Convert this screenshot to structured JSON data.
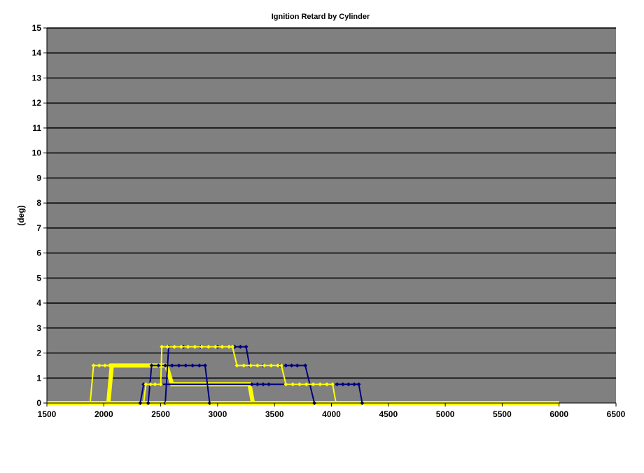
{
  "chart_data": {
    "type": "line",
    "title": "Ignition Retard by Cylinder",
    "xlabel": "",
    "ylabel": "(deg)",
    "xlim": [
      1500,
      6500
    ],
    "ylim": [
      0,
      15
    ],
    "xticks": [
      1500,
      2000,
      2500,
      3000,
      3500,
      4000,
      4500,
      5000,
      5500,
      6000,
      6500
    ],
    "yticks": [
      0,
      1,
      2,
      3,
      4,
      5,
      6,
      7,
      8,
      9,
      10,
      11,
      12,
      13,
      14,
      15
    ],
    "grid": "horizontal",
    "legend": "none",
    "plot_background": "#808080",
    "series": [
      {
        "color": "#ffff00",
        "markers": false,
        "width": 6,
        "points": [
          [
            1500,
            0
          ],
          [
            6000,
            0
          ]
        ]
      },
      {
        "color": "#ffff00",
        "markers": false,
        "width": 6,
        "points": [
          [
            2040,
            0
          ],
          [
            2070,
            1.5
          ],
          [
            2550,
            1.5
          ],
          [
            2600,
            0.75
          ],
          [
            3280,
            0.75
          ],
          [
            3310,
            0
          ]
        ]
      },
      {
        "color": "#ffff00",
        "markers": true,
        "width": 2,
        "points": [
          [
            1880,
            0
          ],
          [
            1910,
            1.5
          ],
          [
            1960,
            1.5
          ],
          [
            2010,
            1.5
          ],
          [
            2050,
            1.5
          ]
        ]
      },
      {
        "color": "#000080",
        "markers": true,
        "width": 2,
        "points": [
          [
            2390,
            0
          ],
          [
            2420,
            1.5
          ],
          [
            2480,
            1.5
          ],
          [
            2540,
            1.5
          ],
          [
            2600,
            1.5
          ],
          [
            2660,
            1.5
          ],
          [
            2720,
            1.5
          ],
          [
            2780,
            1.5
          ],
          [
            2840,
            1.5
          ],
          [
            2890,
            1.5
          ],
          [
            2930,
            0
          ]
        ]
      },
      {
        "color": "#000080",
        "markers": true,
        "width": 2,
        "points": [
          [
            2540,
            0
          ],
          [
            2570,
            2.25
          ],
          [
            2700,
            2.25
          ],
          [
            2850,
            2.25
          ],
          [
            3000,
            2.25
          ],
          [
            3150,
            2.25
          ],
          [
            3200,
            2.25
          ],
          [
            3250,
            2.25
          ],
          [
            3280,
            1.5
          ],
          [
            3400,
            1.5
          ],
          [
            3550,
            1.5
          ],
          [
            3600,
            1.5
          ],
          [
            3650,
            1.5
          ],
          [
            3700,
            1.5
          ],
          [
            3770,
            1.5
          ],
          [
            3850,
            0
          ]
        ]
      },
      {
        "color": "#000080",
        "markers": true,
        "width": 2,
        "points": [
          [
            2320,
            0
          ],
          [
            2350,
            0.75
          ],
          [
            3300,
            0.75
          ],
          [
            3350,
            0.75
          ],
          [
            3400,
            0.75
          ],
          [
            3450,
            0.75
          ],
          [
            4050,
            0.75
          ],
          [
            4100,
            0.75
          ],
          [
            4150,
            0.75
          ],
          [
            4200,
            0.75
          ],
          [
            4240,
            0.75
          ],
          [
            4270,
            0
          ]
        ]
      },
      {
        "color": "#ffff00",
        "markers": true,
        "width": 2,
        "points": [
          [
            2350,
            0
          ],
          [
            2370,
            0.75
          ],
          [
            2410,
            0.75
          ],
          [
            2450,
            0.75
          ],
          [
            2500,
            0.75
          ],
          [
            2510,
            2.25
          ],
          [
            2560,
            2.25
          ],
          [
            2620,
            2.25
          ],
          [
            2680,
            2.25
          ],
          [
            2740,
            2.25
          ],
          [
            2800,
            2.25
          ],
          [
            2860,
            2.25
          ],
          [
            2920,
            2.25
          ],
          [
            2980,
            2.25
          ],
          [
            3040,
            2.25
          ],
          [
            3100,
            2.25
          ],
          [
            3130,
            2.25
          ],
          [
            3170,
            1.5
          ],
          [
            3230,
            1.5
          ],
          [
            3290,
            1.5
          ],
          [
            3350,
            1.5
          ],
          [
            3410,
            1.5
          ],
          [
            3470,
            1.5
          ],
          [
            3530,
            1.5
          ],
          [
            3560,
            1.5
          ],
          [
            3600,
            0.75
          ],
          [
            3660,
            0.75
          ],
          [
            3720,
            0.75
          ],
          [
            3780,
            0.75
          ],
          [
            3840,
            0.75
          ],
          [
            3900,
            0.75
          ],
          [
            3960,
            0.75
          ],
          [
            4010,
            0.75
          ],
          [
            4040,
            0
          ]
        ]
      },
      {
        "color": "#ffff00",
        "markers": true,
        "width": 1,
        "points": [
          [
            2050,
            0
          ],
          [
            2150,
            0
          ],
          [
            2250,
            0
          ],
          [
            2350,
            0
          ],
          [
            2450,
            0
          ],
          [
            2550,
            0
          ],
          [
            2650,
            0
          ],
          [
            2750,
            0
          ],
          [
            2850,
            0
          ],
          [
            2950,
            0
          ],
          [
            3050,
            0
          ],
          [
            3150,
            0
          ],
          [
            3250,
            0
          ],
          [
            4100,
            0
          ],
          [
            4300,
            0
          ],
          [
            4500,
            0
          ],
          [
            4700,
            0
          ]
        ]
      }
    ]
  }
}
